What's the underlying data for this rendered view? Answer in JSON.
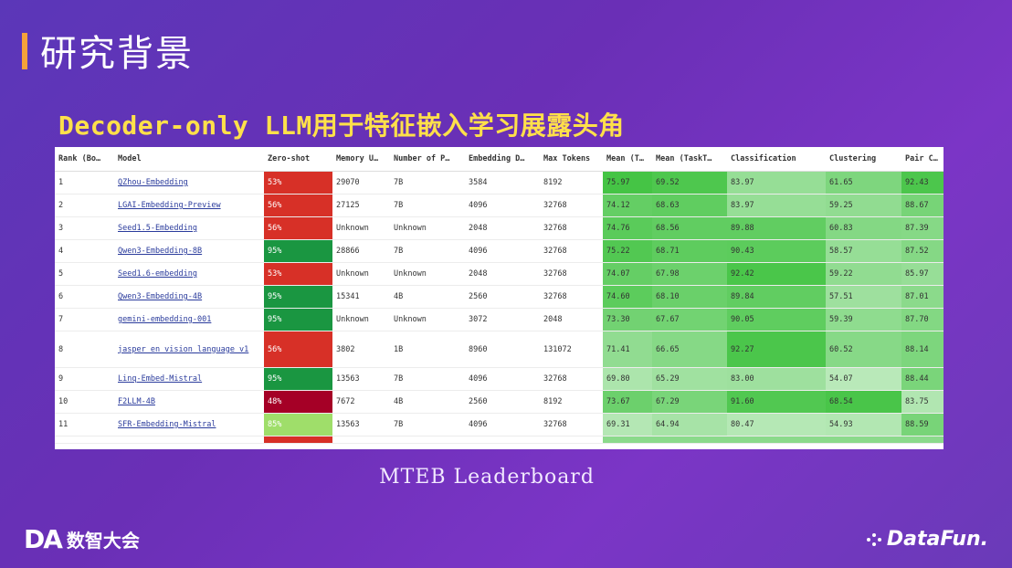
{
  "slide": {
    "title": "研究背景",
    "subtitle": "Decoder-only LLM用于特征嵌入学习展露头角",
    "caption": "MTEB Leaderboard",
    "logo_left_abbr": "DA",
    "logo_left_text": "数智大会",
    "logo_right_text": "DataFun."
  },
  "colors": {
    "zero_shot_high": "#1a9641",
    "zero_shot_mid": "#9fde6a",
    "zero_shot_low": "#d73027",
    "zero_shot_verylow": "#a50026",
    "score_green": "#66c868"
  },
  "table": {
    "headers": [
      "Rank (Bo…",
      "Model",
      "Zero-shot",
      "Memory U…",
      "Number of P…",
      "Embedding D…",
      "Max Tokens",
      "Mean (T…",
      "Mean (TaskT…",
      "Classification",
      "Clustering",
      "Pair Cl…"
    ],
    "rows": [
      {
        "rank": "1",
        "model": "QZhou-Embedding",
        "zero": "53%",
        "memory": "29070",
        "params": "7B",
        "dim": "3584",
        "max": "8192",
        "mean_t": "75.97",
        "mean_tt": "69.52",
        "cls": "83.97",
        "clu": "61.65",
        "pair": "92.43"
      },
      {
        "rank": "2",
        "model": "LGAI-Embedding-Preview",
        "zero": "56%",
        "memory": "27125",
        "params": "7B",
        "dim": "4096",
        "max": "32768",
        "mean_t": "74.12",
        "mean_tt": "68.63",
        "cls": "83.97",
        "clu": "59.25",
        "pair": "88.67"
      },
      {
        "rank": "3",
        "model": "Seed1.5-Embedding",
        "zero": "56%",
        "memory": "Unknown",
        "params": "Unknown",
        "dim": "2048",
        "max": "32768",
        "mean_t": "74.76",
        "mean_tt": "68.56",
        "cls": "89.88",
        "clu": "60.83",
        "pair": "87.39"
      },
      {
        "rank": "4",
        "model": "Qwen3-Embedding-8B",
        "zero": "95%",
        "memory": "28866",
        "params": "7B",
        "dim": "4096",
        "max": "32768",
        "mean_t": "75.22",
        "mean_tt": "68.71",
        "cls": "90.43",
        "clu": "58.57",
        "pair": "87.52"
      },
      {
        "rank": "5",
        "model": "Seed1.6-embedding",
        "zero": "53%",
        "memory": "Unknown",
        "params": "Unknown",
        "dim": "2048",
        "max": "32768",
        "mean_t": "74.07",
        "mean_tt": "67.98",
        "cls": "92.42",
        "clu": "59.22",
        "pair": "85.97"
      },
      {
        "rank": "6",
        "model": "Qwen3-Embedding-4B",
        "zero": "95%",
        "memory": "15341",
        "params": "4B",
        "dim": "2560",
        "max": "32768",
        "mean_t": "74.60",
        "mean_tt": "68.10",
        "cls": "89.84",
        "clu": "57.51",
        "pair": "87.01"
      },
      {
        "rank": "7",
        "model": "gemini-embedding-001",
        "zero": "95%",
        "memory": "Unknown",
        "params": "Unknown",
        "dim": "3072",
        "max": "2048",
        "mean_t": "73.30",
        "mean_tt": "67.67",
        "cls": "90.05",
        "clu": "59.39",
        "pair": "87.70"
      },
      {
        "rank": "8",
        "model": "jasper_en_vision_language_v1",
        "zero": "56%",
        "memory": "3802",
        "params": "1B",
        "dim": "8960",
        "max": "131072",
        "mean_t": "71.41",
        "mean_tt": "66.65",
        "cls": "92.27",
        "clu": "60.52",
        "pair": "88.14"
      },
      {
        "rank": "9",
        "model": "Linq-Embed-Mistral",
        "zero": "95%",
        "memory": "13563",
        "params": "7B",
        "dim": "4096",
        "max": "32768",
        "mean_t": "69.80",
        "mean_tt": "65.29",
        "cls": "83.00",
        "clu": "54.07",
        "pair": "88.44"
      },
      {
        "rank": "10",
        "model": "F2LLM-4B",
        "zero": "48%",
        "memory": "7672",
        "params": "4B",
        "dim": "2560",
        "max": "8192",
        "mean_t": "73.67",
        "mean_tt": "67.29",
        "cls": "91.60",
        "clu": "68.54",
        "pair": "83.75"
      },
      {
        "rank": "11",
        "model": "SFR-Embedding-Mistral",
        "zero": "85%",
        "memory": "13563",
        "params": "7B",
        "dim": "4096",
        "max": "32768",
        "mean_t": "69.31",
        "mean_tt": "64.94",
        "cls": "80.47",
        "clu": "54.93",
        "pair": "88.59"
      }
    ]
  }
}
